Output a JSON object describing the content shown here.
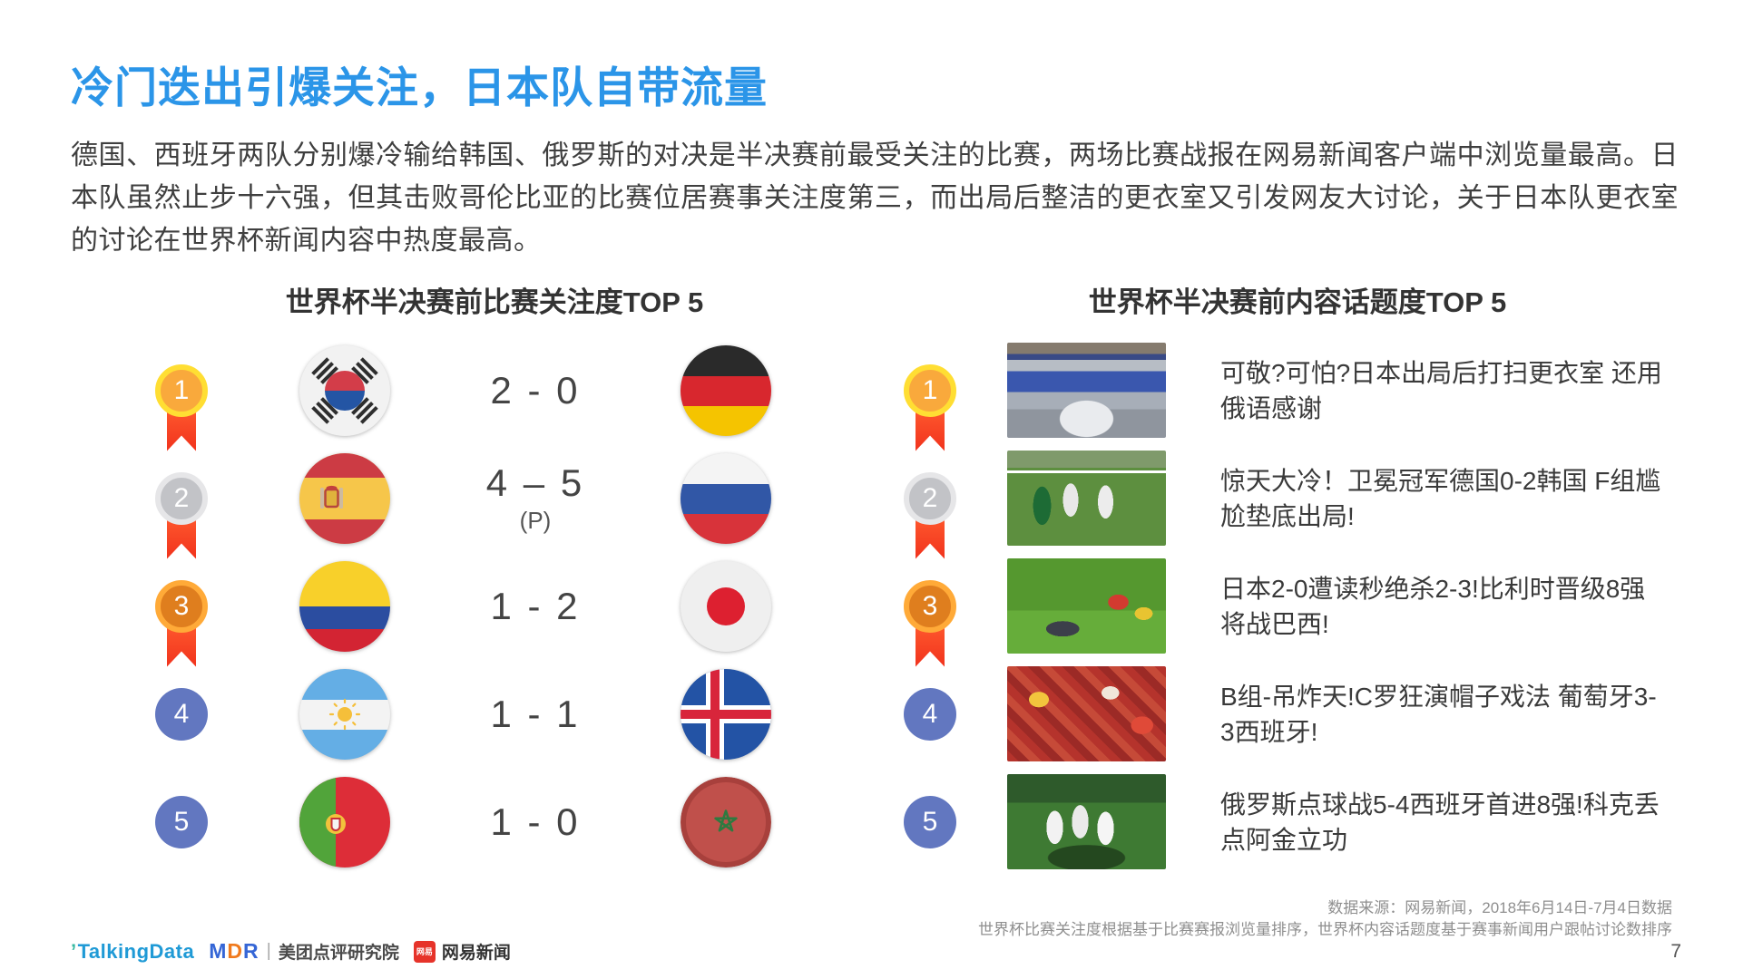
{
  "title": "冷门迭出引爆关注，日本队自带流量",
  "intro": "德国、西班牙两队分别爆冷输给韩国、俄罗斯的对决是半决赛前最受关注的比赛，两场比赛战报在网易新闻客户端中浏览量最高。日本队虽然止步十六强，但其击败哥伦比亚的比赛位居赛事关注度第三，而出局后整洁的更衣室又引发网友大讨论，关于日本队更衣室的讨论在世界杯新闻内容中热度最高。",
  "left_panel": {
    "title": "世界杯半决赛前比赛关注度TOP 5",
    "rows": [
      {
        "rank": "1",
        "medal": "gold",
        "home_flag": "south-korea",
        "score": "2 - 0",
        "note": "",
        "away_flag": "germany"
      },
      {
        "rank": "2",
        "medal": "silver",
        "home_flag": "spain",
        "score": "4 – 5",
        "note": "(P)",
        "away_flag": "russia"
      },
      {
        "rank": "3",
        "medal": "bronze",
        "home_flag": "colombia",
        "score": "1 - 2",
        "note": "",
        "away_flag": "japan"
      },
      {
        "rank": "4",
        "medal": "blue",
        "home_flag": "argentina",
        "score": "1 - 1",
        "note": "",
        "away_flag": "iceland"
      },
      {
        "rank": "5",
        "medal": "blue",
        "home_flag": "portugal",
        "score": "1 - 0",
        "note": "",
        "away_flag": "morocco"
      }
    ]
  },
  "right_panel": {
    "title": "世界杯半决赛前内容话题度TOP 5",
    "rows": [
      {
        "rank": "1",
        "medal": "gold",
        "image": "locker-room-photo",
        "headline": "可敬?可怕?日本出局后打扫更衣室 还用俄语感谢"
      },
      {
        "rank": "2",
        "medal": "silver",
        "image": "germany-korea-match-photo",
        "headline": "惊天大冷！卫冕冠军德国0-2韩国 F组尴尬垫底出局!"
      },
      {
        "rank": "3",
        "medal": "bronze",
        "image": "japan-belgium-match-photo",
        "headline": "日本2-0遭读秒绝杀2-3!比利时晋级8强将战巴西!"
      },
      {
        "rank": "4",
        "medal": "blue",
        "image": "portugal-spain-fans-photo",
        "headline": "B组-吊炸天!C罗狂演帽子戏法 葡萄牙3-3西班牙!"
      },
      {
        "rank": "5",
        "medal": "blue",
        "image": "russia-spain-match-photo",
        "headline": "俄罗斯点球战5-4西班牙首进8强!科克丢点阿金立功"
      }
    ]
  },
  "footer": {
    "source_line1": "数据来源：网易新闻，2018年6月14日-7月4日数据",
    "source_line2": "世界杯比赛关注度根据基于比赛赛报浏览量排序，世界杯内容话题度基于赛事新闻用户跟帖讨论数排序",
    "page_number": "7",
    "logos": {
      "talkingdata_mark": "’",
      "talkingdata": "TalkingData",
      "mdr_m": "M",
      "mdr_d": "D",
      "mdr_r": "R",
      "mdr_separator": "|",
      "mdr_label": "美团点评研究院",
      "netease_badge": "网易",
      "netease": "网易新闻"
    }
  },
  "colors": {
    "title_blue": "#2b95e8",
    "medal_gold": "#f9a93c",
    "medal_gold_ring": "#ffde33",
    "medal_silver": "#c2c3c7",
    "medal_bronze": "#df7e1e",
    "rank_blue": "#6277c0",
    "ribbon_red": "#f1331d"
  }
}
